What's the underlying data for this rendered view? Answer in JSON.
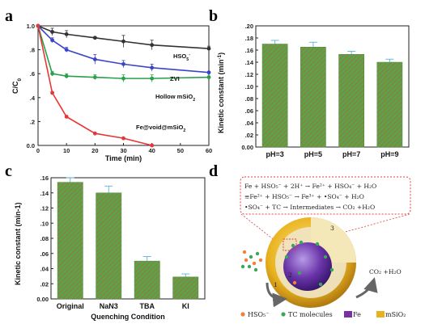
{
  "panels": {
    "a": "a",
    "b": "b",
    "c": "c",
    "d": "d"
  },
  "chart_data": [
    {
      "id": "a",
      "type": "line",
      "xlabel": "Time (min)",
      "ylabel": "C/C",
      "ylabel_sub": "0",
      "xlim": [
        0,
        60
      ],
      "ylim": [
        0.0,
        1.0
      ],
      "xticks": [
        0,
        10,
        20,
        30,
        40,
        50,
        60
      ],
      "yticks": [
        "0.0",
        ".2",
        ".4",
        ".6",
        ".8",
        "1.0"
      ],
      "series": [
        {
          "name": "HSO",
          "name_sub": "5",
          "name_sup": "-",
          "color": "#333333",
          "x": [
            0,
            5,
            10,
            20,
            30,
            40,
            60
          ],
          "y": [
            1.0,
            0.95,
            0.93,
            0.9,
            0.87,
            0.84,
            0.81
          ],
          "err": [
            0,
            0.03,
            0.03,
            0.01,
            0.05,
            0.04,
            0.02
          ]
        },
        {
          "name": "ZVI",
          "color": "#3b44c8",
          "x": [
            0,
            5,
            10,
            20,
            30,
            40,
            60
          ],
          "y": [
            1.0,
            0.88,
            0.8,
            0.72,
            0.68,
            0.65,
            0.61
          ],
          "err": [
            0,
            0.02,
            0.02,
            0.04,
            0.03,
            0.03,
            0.01
          ]
        },
        {
          "name": "Hollow mSiO",
          "name_sub": "2",
          "color": "#2aa04a",
          "x": [
            0,
            5,
            10,
            20,
            30,
            40,
            60
          ],
          "y": [
            1.0,
            0.6,
            0.58,
            0.57,
            0.56,
            0.56,
            0.57
          ],
          "err": [
            0,
            0.02,
            0.02,
            0.02,
            0.03,
            0.03,
            0.01
          ]
        },
        {
          "name": "Fe@void@mSiO",
          "name_sub": "2",
          "color": "#e83535",
          "x": [
            0,
            5,
            10,
            20,
            30,
            40
          ],
          "y": [
            1.0,
            0.44,
            0.24,
            0.1,
            0.06,
            0.0
          ],
          "err": [
            0,
            0,
            0.01,
            0,
            0,
            0
          ]
        }
      ]
    },
    {
      "id": "b",
      "type": "bar",
      "ylabel": "Kinetic constant (min",
      "ylabel_sup": "-1",
      "ylabel_end": ")",
      "ylim": [
        0.0,
        0.2
      ],
      "yticks": [
        "0.00",
        ".02",
        ".04",
        ".06",
        ".08",
        ".10",
        ".12",
        ".14",
        ".16",
        ".18",
        ".20"
      ],
      "categories": [
        "pH=3",
        "pH=5",
        "pH=7",
        "pH=9"
      ],
      "values": [
        0.17,
        0.165,
        0.153,
        0.14
      ],
      "errors": [
        0.006,
        0.008,
        0.005,
        0.005
      ],
      "bar_color": "#5aa34a"
    },
    {
      "id": "c",
      "type": "bar",
      "xlabel": "Quenching Condition",
      "ylabel": "Kinetic constant (min-1)",
      "ylim": [
        0.0,
        0.16
      ],
      "yticks": [
        "0.00",
        ".02",
        ".04",
        ".06",
        ".08",
        ".10",
        ".12",
        ".14",
        ".16"
      ],
      "categories": [
        "Original",
        "NaN3",
        "TBA",
        "KI"
      ],
      "values": [
        0.154,
        0.14,
        0.05,
        0.029
      ],
      "errors": [
        0.006,
        0.009,
        0.006,
        0.004
      ],
      "bar_color": "#5aa34a"
    }
  ],
  "diagram": {
    "equations": [
      "Fe + HSO₅⁻ + 2H⁺ → Fe²⁺ + HSO₄⁻ + H₂O",
      "≡Fe²⁺ + HSO₅⁻ → Fe³⁺ + •SO₄⁻ + H₂O",
      "•SO₄⁻ + TC → Intermediates → CO₂ +H₂O"
    ],
    "step_labels": [
      "1",
      "2",
      "3"
    ],
    "product_label": "CO₂ +H₂O",
    "legend": [
      {
        "label": "HSO₅⁻",
        "color": "#f0803a",
        "shape": "dot"
      },
      {
        "label": "TC molecules",
        "color": "#3aa85a",
        "shape": "dot"
      },
      {
        "label": "Fe",
        "color": "#7a2ea8",
        "shape": "rect"
      },
      {
        "label": "mSiO₂",
        "color": "#e8b21e",
        "shape": "rect"
      }
    ]
  }
}
